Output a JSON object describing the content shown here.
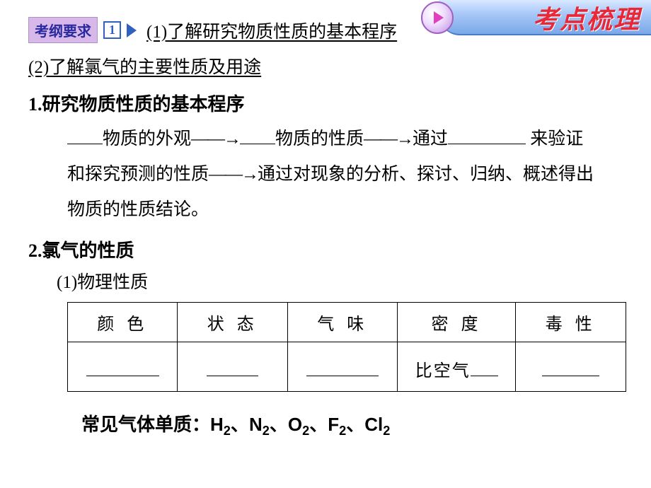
{
  "banner": {
    "title": "考点梳理",
    "text_color": "#e82838",
    "bg_gradient_top": "#d8e8ff",
    "bg_gradient_bottom": "#7aa8e8"
  },
  "requirement": {
    "tag": "考纲要求",
    "number": "1",
    "line1": "(1)了解研究物质性质的基本程序",
    "line2": "(2)了解氯气的主要性质及用途"
  },
  "section1": {
    "heading": "1.研究物质性质的基本程序",
    "seg1": "物质的外观",
    "seg2": "物质的性质",
    "seg3": "通过",
    "seg4": "来验证和探究预测的性质",
    "seg5": "通过对现象的分析、探讨、归纳、概述得出物质的性质结论。"
  },
  "section2": {
    "heading": "2.氯气的性质",
    "sub": "(1)物理性质",
    "table": {
      "headers": [
        "颜 色",
        "状 态",
        "气 味",
        "密 度",
        "毒 性"
      ],
      "row_prefix_density": "比空气"
    }
  },
  "footer": {
    "prefix": "常见气体单质：",
    "gases": [
      "H",
      "N",
      "O",
      "F",
      "Cl"
    ],
    "sub": "2",
    "sep": "、"
  },
  "colors": {
    "tag_bg": "#d8b8e8",
    "tag_text": "#2828a0",
    "numbox_border": "#3060c0",
    "text": "#000000",
    "page_bg": "#ffffff"
  }
}
